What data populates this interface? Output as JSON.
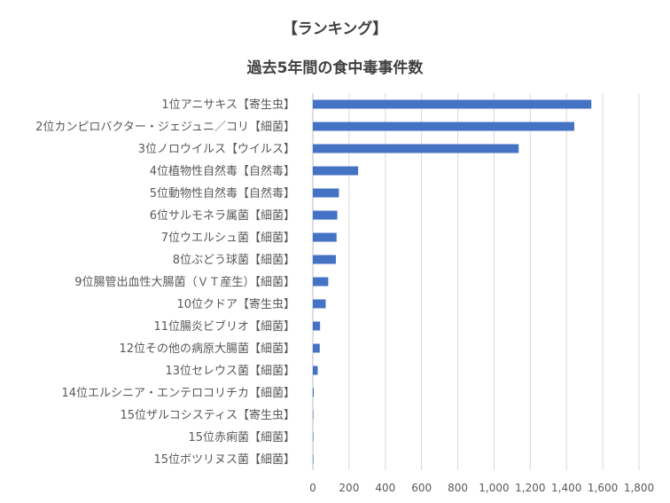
{
  "chart_data": {
    "type": "bar",
    "orientation": "horizontal",
    "title": "【ランキング】",
    "subtitle": "過去5年間の食中毒事件数",
    "categories": [
      "1位アニサキス【寄生虫】",
      "2位カンピロバクター・ジェジュニ／コリ【細菌】",
      "3位ノロウイルス【ウイルス】",
      "4位植物性自然毒【自然毒】",
      "5位動物性自然毒【自然毒】",
      "6位サルモネラ属菌【細菌】",
      "7位ウエルシュ菌【細菌】",
      "8位ぶどう球菌【細菌】",
      "9位腸管出血性大腸菌（ＶＴ産生）【細菌】",
      "10位クドア【寄生虫】",
      "11位腸炎ビブリオ【細菌】",
      "12位その他の病原大腸菌【細菌】",
      "13位セレウス菌【細菌】",
      "14位エルシニア・エンテロコリチカ【細菌】",
      "15位ザルコシスティス【寄生虫】",
      "15位赤痢菌【細菌】",
      "15位ボツリヌス菌【細菌】"
    ],
    "values": [
      1537,
      1443,
      1136,
      250,
      144,
      135,
      131,
      127,
      85,
      71,
      40,
      38,
      27,
      5,
      3,
      3,
      3
    ],
    "xlim": [
      0,
      1800
    ],
    "xticks": [
      0,
      200,
      400,
      600,
      800,
      1000,
      1200,
      1400,
      1600,
      1800
    ],
    "xtick_labels": [
      "0",
      "200",
      "400",
      "600",
      "800",
      "1,000",
      "1,200",
      "1,400",
      "1,600",
      "1,800"
    ],
    "grid": "vertical",
    "legend": "none",
    "colors": {
      "bar": "#4472C4",
      "grid": "#D9D9D9",
      "axis": "#BFBFBF"
    }
  }
}
